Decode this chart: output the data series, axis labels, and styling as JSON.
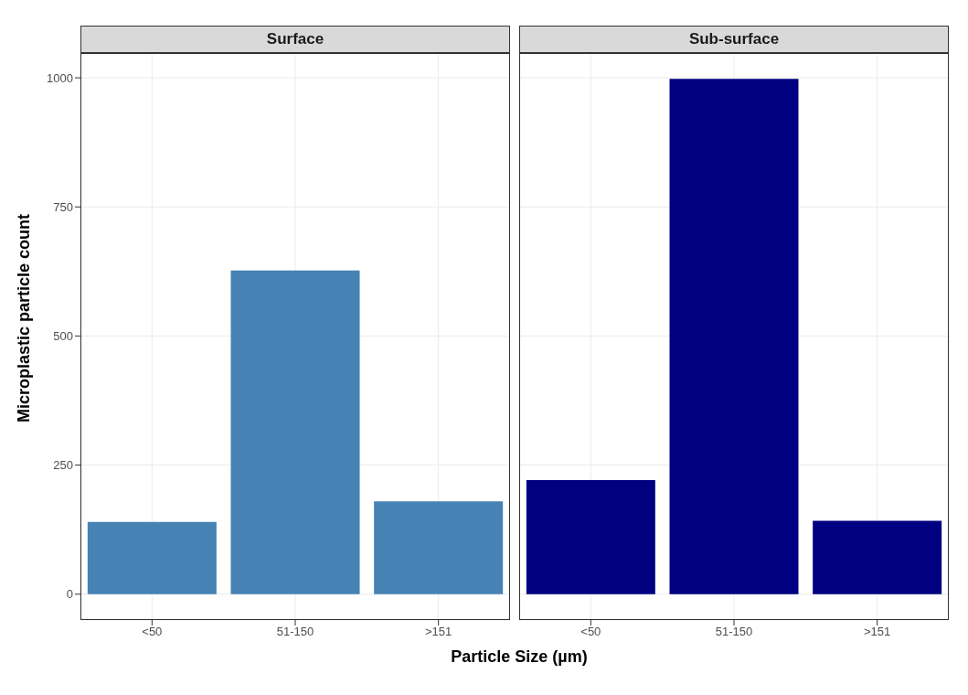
{
  "chart_data": [
    {
      "type": "bar",
      "title": "Surface",
      "ylabel": "Microplastic particle count",
      "xlabel": "Particle Size (µm)",
      "categories": [
        "<50",
        "51-150",
        ">151"
      ],
      "values": [
        140,
        627,
        180
      ],
      "color": "#4682b4",
      "ylim": [
        -50,
        1048
      ],
      "yticks": [
        0,
        250,
        500,
        750,
        1000
      ],
      "grid": true
    },
    {
      "type": "bar",
      "title": "Sub-surface",
      "categories": [
        "<50",
        "51-150",
        ">151"
      ],
      "values": [
        221,
        998,
        142
      ],
      "color": "#000080",
      "ylim": [
        -50,
        1048
      ],
      "yticks": [
        0,
        250,
        500,
        750,
        1000
      ],
      "grid": true,
      "tick_labels": "x"
    }
  ]
}
